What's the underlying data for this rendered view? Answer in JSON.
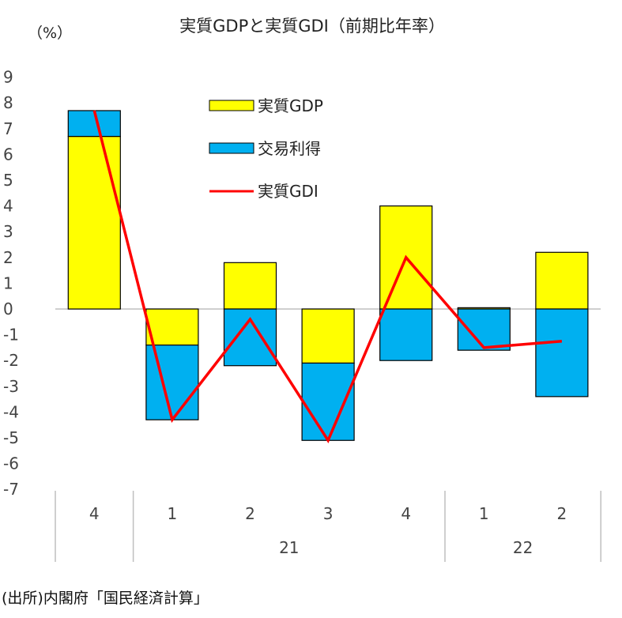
{
  "chart_data": {
    "type": "bar",
    "stacked": true,
    "title": "実質GDPと実質GDI（前期比年率）",
    "ylabel": "（%）",
    "ylim": [
      -7,
      9
    ],
    "yticks": [
      9,
      8,
      7,
      6,
      5,
      4,
      3,
      2,
      1,
      0,
      -1,
      -2,
      -3,
      -4,
      -5,
      -6,
      -7
    ],
    "categories": [
      "4",
      "1",
      "2",
      "3",
      "4",
      "1",
      "2"
    ],
    "year_groups": [
      {
        "label": "",
        "span": 1
      },
      {
        "label": "21",
        "span": 4
      },
      {
        "label": "22",
        "span": 2
      }
    ],
    "series": [
      {
        "name": "実質GDP",
        "kind": "bar",
        "color": "#FFFF00",
        "values": [
          6.7,
          -1.4,
          1.8,
          -2.1,
          4.0,
          0.05,
          2.2
        ]
      },
      {
        "name": "交易利得",
        "kind": "bar",
        "color": "#00B0F0",
        "values": [
          1.0,
          -2.9,
          -2.2,
          -3.0,
          -2.0,
          -1.6,
          -3.4
        ]
      },
      {
        "name": "実質GDI",
        "kind": "line",
        "color": "#FF0000",
        "values": [
          7.7,
          -4.3,
          -0.4,
          -5.1,
          2.0,
          -1.5,
          -1.25
        ]
      }
    ],
    "legend_position": "top-center"
  },
  "footer": {
    "source": "(出所)内閣府「国民経済計算」"
  }
}
